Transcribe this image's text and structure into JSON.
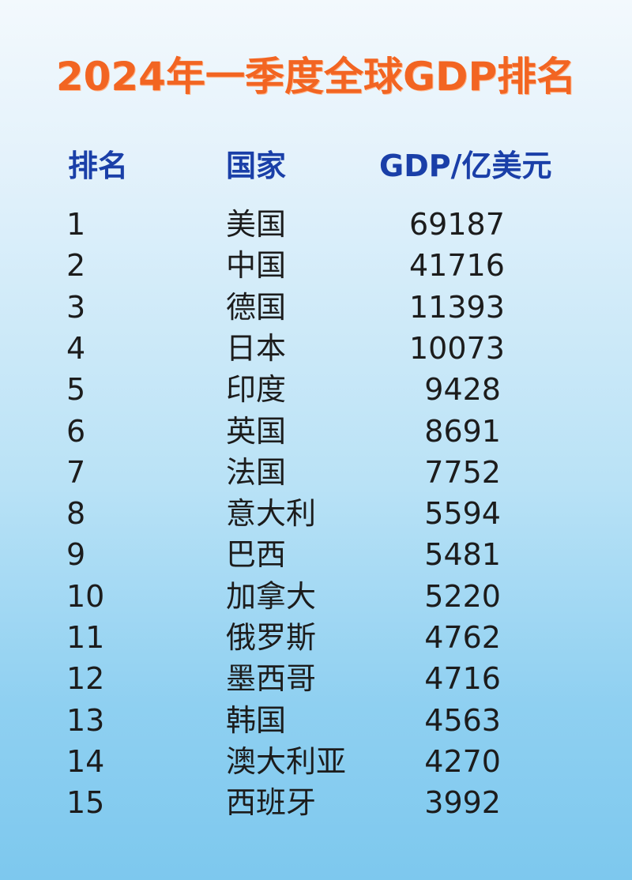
{
  "title": "2024年一季度全球GDP排名",
  "headers": {
    "rank": "排名",
    "country": "国家",
    "gdp": "GDP/亿美元"
  },
  "colors": {
    "title": "#f26522",
    "header": "#1a3fa8",
    "text": "#1c1c1c",
    "background_top": "#f3f9fd",
    "background_bottom": "#7dc8ee"
  },
  "chart_data": {
    "type": "table",
    "title": "2024年一季度全球GDP排名",
    "columns": [
      "排名",
      "国家",
      "GDP/亿美元"
    ],
    "rows": [
      {
        "rank": "1",
        "country": "美国",
        "gdp": "69187"
      },
      {
        "rank": "2",
        "country": "中国",
        "gdp": "41716"
      },
      {
        "rank": "3",
        "country": "德国",
        "gdp": "11393"
      },
      {
        "rank": "4",
        "country": "日本",
        "gdp": "10073"
      },
      {
        "rank": "5",
        "country": "印度",
        "gdp": "9428"
      },
      {
        "rank": "6",
        "country": "英国",
        "gdp": "8691"
      },
      {
        "rank": "7",
        "country": "法国",
        "gdp": "7752"
      },
      {
        "rank": "8",
        "country": "意大利",
        "gdp": "5594"
      },
      {
        "rank": "9",
        "country": "巴西",
        "gdp": "5481"
      },
      {
        "rank": "10",
        "country": "加拿大",
        "gdp": "5220"
      },
      {
        "rank": "11",
        "country": "俄罗斯",
        "gdp": "4762"
      },
      {
        "rank": "12",
        "country": "墨西哥",
        "gdp": "4716"
      },
      {
        "rank": "13",
        "country": "韩国",
        "gdp": "4563"
      },
      {
        "rank": "14",
        "country": "澳大利亚",
        "gdp": "4270"
      },
      {
        "rank": "15",
        "country": "西班牙",
        "gdp": "3992"
      }
    ]
  }
}
